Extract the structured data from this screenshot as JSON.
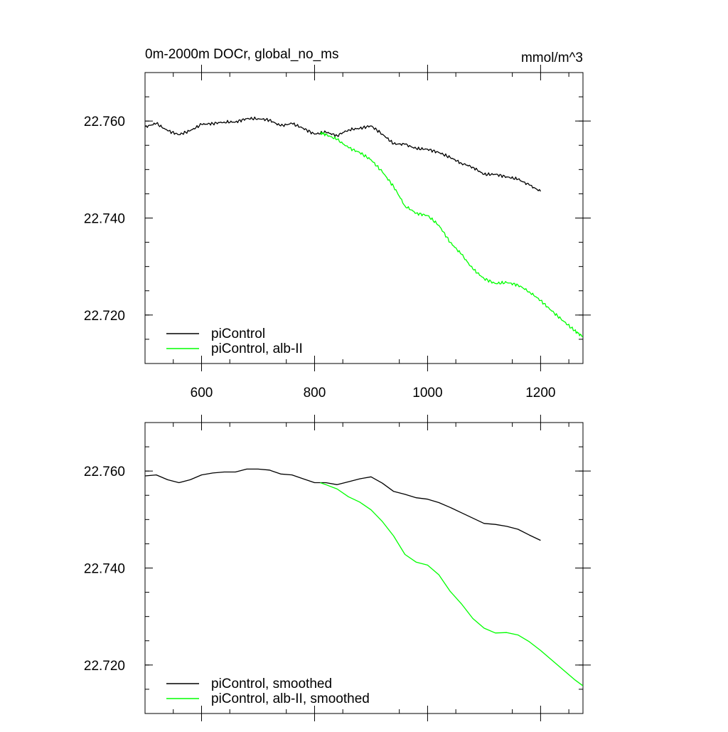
{
  "chart_data": [
    {
      "type": "line",
      "title": "0m-2000m DOCr, global_no_ms",
      "units": "mmol/m^3",
      "xlim": [
        500,
        1275
      ],
      "ylim": [
        22.71,
        22.77
      ],
      "x_ticks": [
        600,
        800,
        1000,
        1200
      ],
      "x_tick_labels": [
        "600",
        "800",
        "1000",
        "1200"
      ],
      "y_ticks": [
        22.72,
        22.74,
        22.76
      ],
      "y_tick_labels": [
        "22.720",
        "22.740",
        "22.760"
      ],
      "legend": "bottom-left",
      "series": [
        {
          "name": "piControl",
          "color": "#000000",
          "x": [
            500,
            520,
            540,
            560,
            580,
            600,
            620,
            640,
            660,
            680,
            700,
            720,
            740,
            760,
            780,
            800,
            820,
            840,
            860,
            880,
            900,
            920,
            940,
            960,
            980,
            1000,
            1020,
            1040,
            1060,
            1080,
            1100,
            1120,
            1140,
            1160,
            1180,
            1200
          ],
          "y": [
            22.7588,
            22.7595,
            22.758,
            22.7572,
            22.758,
            22.7593,
            22.7595,
            22.7598,
            22.7598,
            22.7605,
            22.7605,
            22.7602,
            22.759,
            22.7595,
            22.7585,
            22.7573,
            22.7577,
            22.757,
            22.7582,
            22.7585,
            22.759,
            22.7573,
            22.7553,
            22.7552,
            22.7543,
            22.7542,
            22.7535,
            22.7525,
            22.7513,
            22.7505,
            22.749,
            22.749,
            22.7485,
            22.748,
            22.7468,
            22.7455
          ]
        },
        {
          "name": "piControl, alb-II",
          "color": "#00ff00",
          "x": [
            810,
            820,
            840,
            860,
            880,
            900,
            920,
            940,
            960,
            980,
            1000,
            1020,
            1040,
            1060,
            1080,
            1100,
            1120,
            1140,
            1160,
            1180,
            1200,
            1220,
            1240,
            1260,
            1275
          ],
          "y": [
            22.7576,
            22.7572,
            22.7562,
            22.7545,
            22.7535,
            22.752,
            22.7495,
            22.7465,
            22.7425,
            22.741,
            22.7405,
            22.7385,
            22.735,
            22.7325,
            22.7295,
            22.7275,
            22.7265,
            22.7267,
            22.7262,
            22.7248,
            22.723,
            22.7208,
            22.7188,
            22.7168,
            22.7155
          ]
        }
      ]
    },
    {
      "type": "line",
      "xlim": [
        500,
        1275
      ],
      "ylim": [
        22.71,
        22.77
      ],
      "x_ticks": [
        600,
        800,
        1000,
        1200
      ],
      "y_ticks": [
        22.72,
        22.74,
        22.76
      ],
      "y_tick_labels": [
        "22.720",
        "22.740",
        "22.760"
      ],
      "legend": "bottom-left",
      "series": [
        {
          "name": "piControl, smoothed",
          "color": "#000000",
          "x": [
            500,
            520,
            540,
            560,
            580,
            600,
            620,
            640,
            660,
            680,
            700,
            720,
            740,
            760,
            780,
            800,
            820,
            840,
            860,
            880,
            900,
            920,
            940,
            960,
            980,
            1000,
            1020,
            1040,
            1060,
            1080,
            1100,
            1120,
            1140,
            1160,
            1180,
            1200
          ],
          "y": [
            22.759,
            22.7592,
            22.7582,
            22.7576,
            22.7582,
            22.7592,
            22.7596,
            22.7598,
            22.7598,
            22.7604,
            22.7604,
            22.7602,
            22.7594,
            22.7592,
            22.7584,
            22.7576,
            22.7576,
            22.7572,
            22.7578,
            22.7584,
            22.7588,
            22.7575,
            22.7558,
            22.7552,
            22.7545,
            22.7542,
            22.7535,
            22.7525,
            22.7514,
            22.7503,
            22.7492,
            22.749,
            22.7486,
            22.748,
            22.7468,
            22.7457
          ]
        },
        {
          "name": "piControl, alb-II, smoothed",
          "color": "#00ff00",
          "x": [
            810,
            820,
            840,
            860,
            880,
            900,
            920,
            940,
            960,
            980,
            1000,
            1020,
            1040,
            1060,
            1080,
            1100,
            1120,
            1140,
            1160,
            1180,
            1200,
            1220,
            1240,
            1260,
            1275
          ],
          "y": [
            22.7576,
            22.7572,
            22.7563,
            22.7547,
            22.7536,
            22.752,
            22.7496,
            22.7466,
            22.7428,
            22.7412,
            22.7406,
            22.7386,
            22.7352,
            22.7326,
            22.7296,
            22.7276,
            22.7266,
            22.7267,
            22.7262,
            22.7248,
            22.723,
            22.721,
            22.719,
            22.717,
            22.7157
          ]
        }
      ]
    }
  ]
}
